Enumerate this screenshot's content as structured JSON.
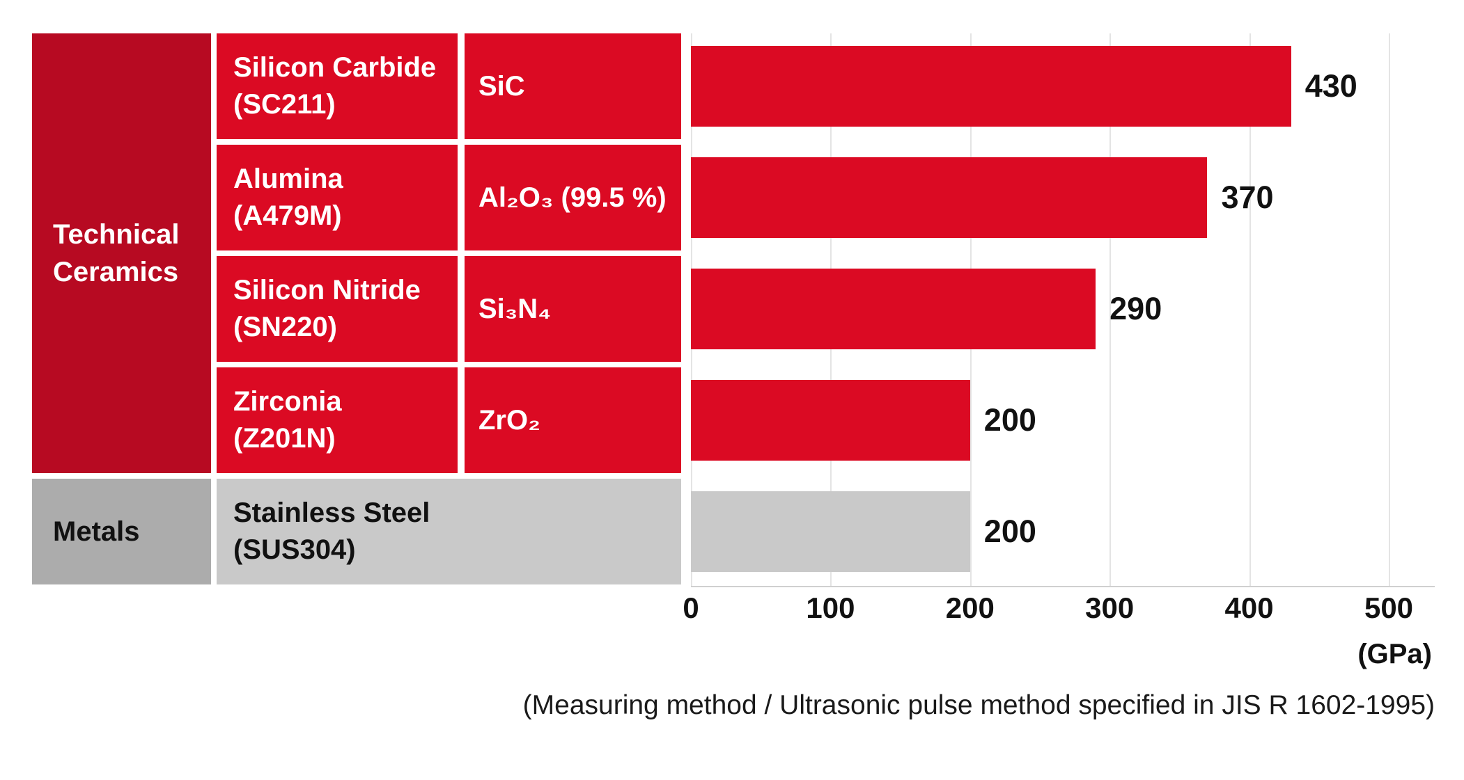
{
  "chart_data": {
    "type": "bar",
    "orientation": "horizontal",
    "unit_label": "(GPa)",
    "caption": "(Measuring method / Ultrasonic pulse method specified in JIS R 1602-1995)",
    "x_axis": {
      "ticks": [
        0,
        100,
        200,
        300,
        400,
        500
      ],
      "min": 0,
      "max": 500,
      "grid": true
    },
    "legend_position": "none",
    "groups": [
      {
        "id": "technical-ceramics",
        "label": "Technical Ceramics",
        "row_start": 0,
        "row_end": 3,
        "style": "ceramics"
      },
      {
        "id": "metals",
        "label": "Metals",
        "row_start": 4,
        "row_end": 4,
        "style": "metals"
      }
    ],
    "rows": [
      {
        "id": "silicon-carbide",
        "group": "technical-ceramics",
        "material": "Silicon Carbide",
        "grade": "(SC211)",
        "formula": "SiC",
        "value": 430
      },
      {
        "id": "alumina",
        "group": "technical-ceramics",
        "material": "Alumina",
        "grade": "(A479M)",
        "formula": "Al₂O₃ (99.5 %)",
        "value": 370
      },
      {
        "id": "silicon-nitride",
        "group": "technical-ceramics",
        "material": "Silicon Nitride",
        "grade": "(SN220)",
        "formula": "Si₃N₄",
        "value": 290
      },
      {
        "id": "zirconia",
        "group": "technical-ceramics",
        "material": "Zirconia",
        "grade": "(Z201N)",
        "formula": "ZrO₂",
        "value": 200
      },
      {
        "id": "stainless-steel",
        "group": "metals",
        "material": "Stainless Steel",
        "grade": "(SUS304)",
        "formula": null,
        "value": 200
      }
    ],
    "colors": {
      "ceramic_cell_red": "#DB0A23",
      "ceramic_group_red": "#B70A22",
      "metal_group_gray": "#ACACAC",
      "metal_cell_gray": "#C9C9C9",
      "gridline": "#E4E4E4",
      "value_text": "#111111",
      "cell_text_on_red": "#FFFFFF"
    }
  }
}
